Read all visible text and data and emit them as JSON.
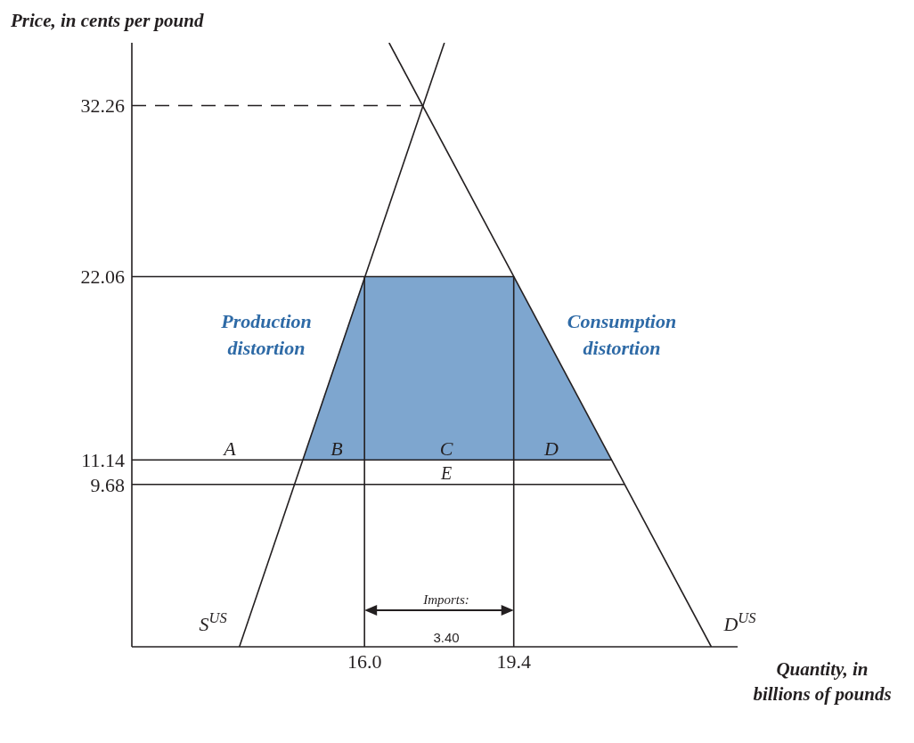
{
  "chart_data": {
    "type": "line",
    "xlabel": "Quantity, in billions of pounds",
    "ylabel": "Price, in cents per pound",
    "xlim": [
      10.7,
      24.5
    ],
    "ylim": [
      0,
      36
    ],
    "xticks": [
      {
        "value": 16,
        "label": "16.0"
      },
      19.4
    ],
    "yticks": [
      9.68,
      11.14,
      22.06,
      32.26
    ],
    "series": [
      {
        "type": "area",
        "color": "#7ea6cf",
        "x": [
          14.59,
          16,
          19.4,
          21.63
        ],
        "values": [
          11.14,
          22.06,
          22.06,
          11.14
        ]
      },
      {
        "name": "S$^{US}$",
        "color": "#231f20",
        "x": [
          13.15,
          17.82
        ],
        "values": [
          0,
          36
        ]
      },
      {
        "name": "D$^{US}$",
        "color": "#231f20",
        "x": [
          16.56,
          23.9
        ],
        "values": [
          36,
          0
        ]
      },
      {
        "color": "#231f20",
        "line_style": "dashed",
        "x": [
          10.7,
          17.32
        ],
        "values": [
          32.26,
          32.26
        ]
      },
      {
        "color": "#231f20",
        "x": [
          10.7,
          19.4
        ],
        "values": [
          22.06,
          22.06
        ]
      },
      {
        "color": "#231f20",
        "x": [
          10.7,
          21.63
        ],
        "values": [
          11.14,
          11.14
        ]
      },
      {
        "color": "#231f20",
        "x": [
          10.7,
          21.92
        ],
        "values": [
          9.68,
          9.68
        ]
      },
      {
        "color": "#231f20",
        "x": [
          16,
          16
        ],
        "values": [
          0,
          22.06
        ]
      },
      {
        "color": "#231f20",
        "x": [
          19.4,
          19.4
        ],
        "values": [
          0,
          22.06
        ]
      }
    ],
    "annotations": [
      "Production distortion",
      "Consumption distortion",
      "A",
      "B",
      "C",
      "D",
      "E",
      "Imports:",
      "3.40"
    ]
  }
}
